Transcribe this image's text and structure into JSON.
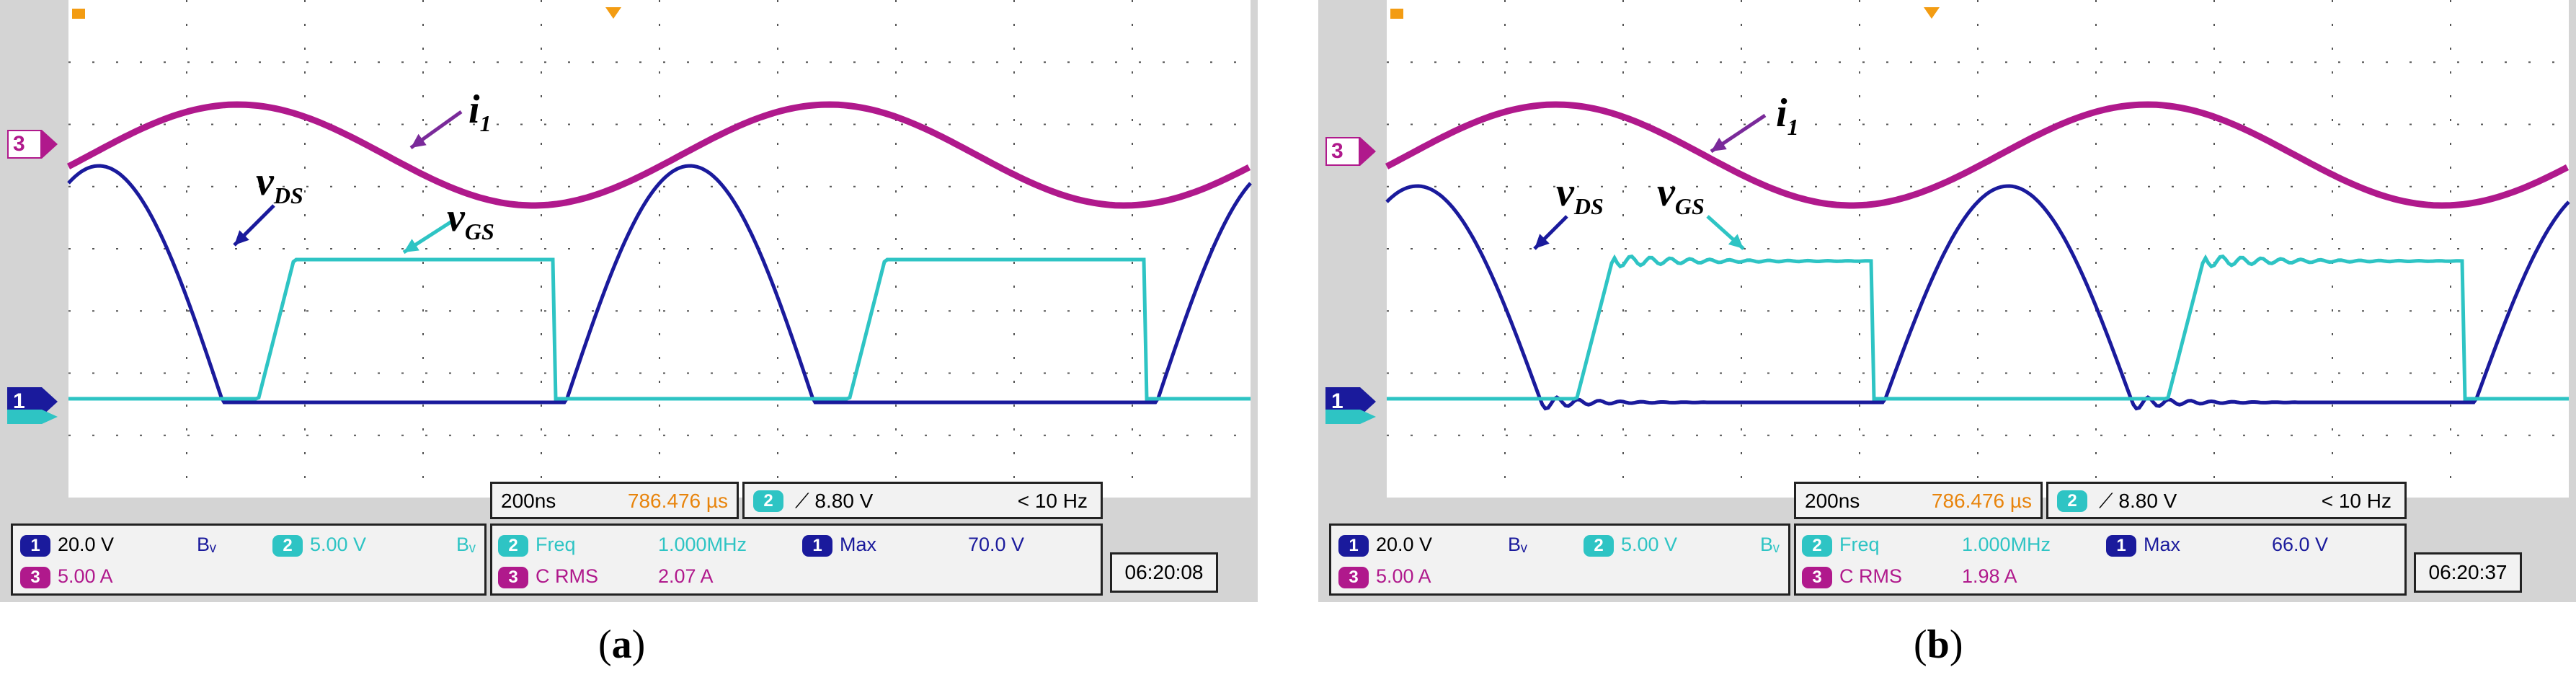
{
  "chart_data": [
    {
      "type": "line",
      "panel": "a",
      "caption_letter": "a",
      "time_base": "200ns",
      "trigger_time": "786.476 µs",
      "trigger_level": "8.80 V",
      "trigger_freq": "< 10 Hz",
      "clock": "06:20:08",
      "channels": [
        {
          "id": "1",
          "scale": "20.0 V",
          "bw": "Bᵥ",
          "color": "#1a1a9c"
        },
        {
          "id": "2",
          "scale": "5.00 V",
          "bw": "Bᵥ",
          "color": "#2ec4c4"
        },
        {
          "id": "3",
          "scale": "5.00 A",
          "color": "#b0198c"
        }
      ],
      "measurements": [
        {
          "channel": "2",
          "label": "Freq",
          "value": "1.000MHz"
        },
        {
          "channel": "3",
          "label": "C RMS",
          "value": "2.07 A"
        },
        {
          "channel": "1",
          "label": "Max",
          "value": "70.0 V"
        }
      ],
      "annotations": {
        "i1": "i",
        "i1_sub": "1",
        "vds": "v",
        "vds_sub": "DS",
        "vgs": "v",
        "vgs_sub": "GS"
      },
      "ringing": false
    },
    {
      "type": "line",
      "panel": "b",
      "caption_letter": "b",
      "time_base": "200ns",
      "trigger_time": "786.476 µs",
      "trigger_level": "8.80 V",
      "trigger_freq": "< 10 Hz",
      "clock": "06:20:37",
      "channels": [
        {
          "id": "1",
          "scale": "20.0 V",
          "bw": "Bᵥ",
          "color": "#1a1a9c"
        },
        {
          "id": "2",
          "scale": "5.00 V",
          "bw": "Bᵥ",
          "color": "#2ec4c4"
        },
        {
          "id": "3",
          "scale": "5.00 A",
          "color": "#b0198c"
        }
      ],
      "measurements": [
        {
          "channel": "2",
          "label": "Freq",
          "value": "1.000MHz"
        },
        {
          "channel": "3",
          "label": "C RMS",
          "value": "1.98 A"
        },
        {
          "channel": "1",
          "label": "Max",
          "value": "66.0 V"
        }
      ],
      "annotations": {
        "i1": "i",
        "i1_sub": "1",
        "vds": "v",
        "vds_sub": "DS",
        "vgs": "v",
        "vgs_sub": "GS"
      },
      "ringing": true
    }
  ],
  "colors": {
    "ch1": "#1a1a9c",
    "ch2": "#2ec4c4",
    "ch3": "#b0198c",
    "trigger": "#f39c12",
    "arrow_i1": "#7a2a9a"
  }
}
